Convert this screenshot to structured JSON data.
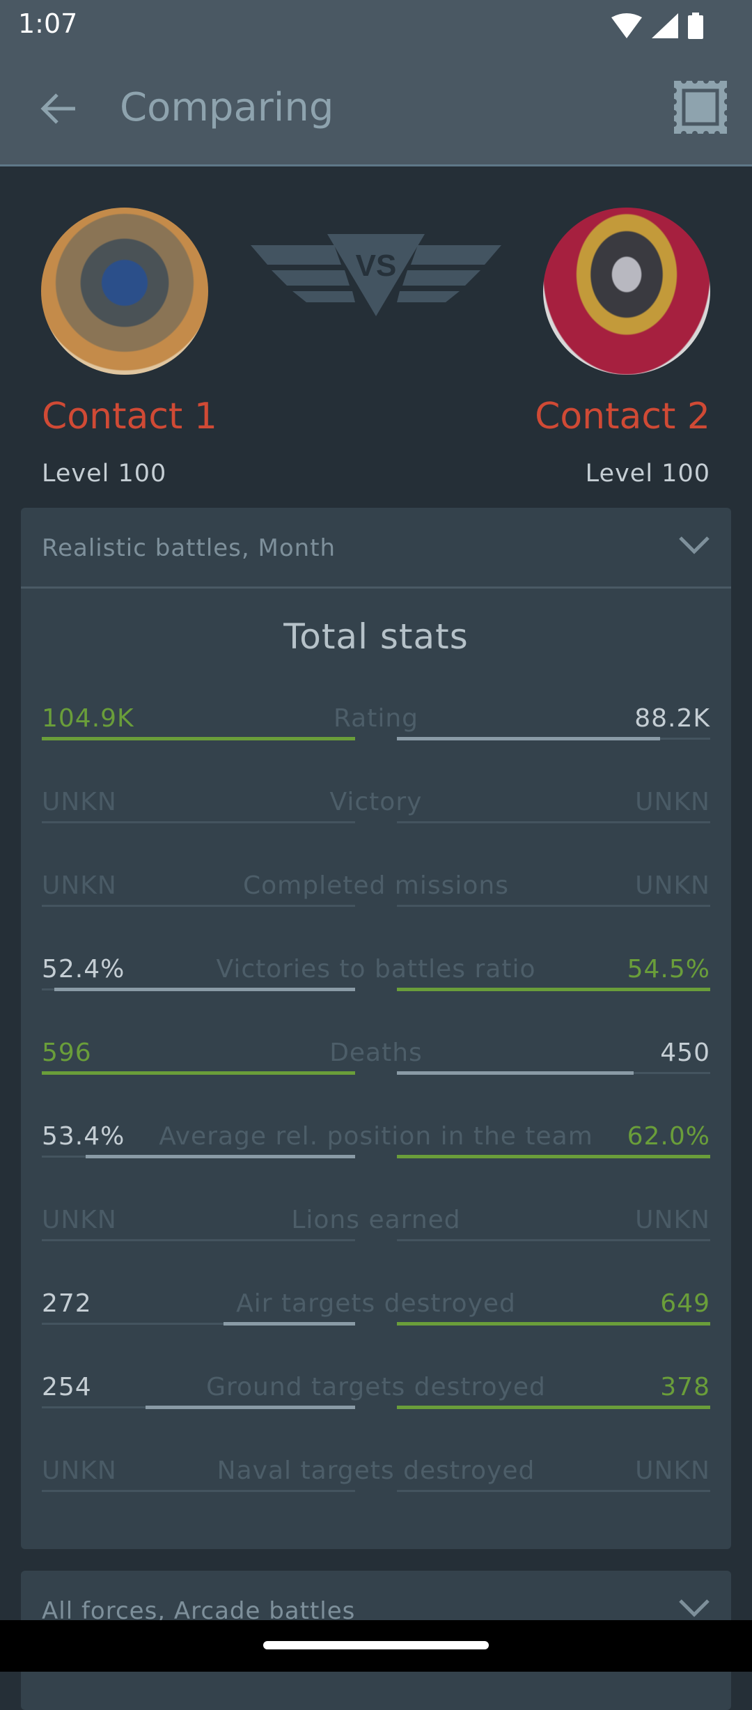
{
  "status": {
    "time": "1:07"
  },
  "appbar": {
    "title": "Comparing"
  },
  "players": [
    {
      "name": "Contact 1",
      "level": "Level 100"
    },
    {
      "name": "Contact 2",
      "level": "Level 100"
    }
  ],
  "vs_label": "VS",
  "card1": {
    "filter": "Realistic battles, Month",
    "title": "Total stats"
  },
  "card2": {
    "filter": "All forces, Arcade battles"
  },
  "colors": {
    "better": "#6a9e3a",
    "worse": "#8a9ba6",
    "unknown": "#4a5b66",
    "name": "#d04a35"
  },
  "stats": [
    {
      "label": "Rating",
      "left": "104.9K",
      "right": "88.2K",
      "left_fill": 1,
      "right_fill": 0.84,
      "winner": "left"
    },
    {
      "label": "Victory",
      "left": "UNKN",
      "right": "UNKN",
      "left_fill": 0,
      "right_fill": 0,
      "winner": "none"
    },
    {
      "label": "Completed missions",
      "left": "UNKN",
      "right": "UNKN",
      "left_fill": 0,
      "right_fill": 0,
      "winner": "none"
    },
    {
      "label": "Victories to battles ratio",
      "left": "52.4%",
      "right": "54.5%",
      "left_fill": 0.96,
      "right_fill": 1,
      "winner": "right"
    },
    {
      "label": "Deaths",
      "left": "596",
      "right": "450",
      "left_fill": 1,
      "right_fill": 0.755,
      "winner": "left"
    },
    {
      "label": "Average rel. position in the team",
      "left": "53.4%",
      "right": "62.0%",
      "left_fill": 0.86,
      "right_fill": 1,
      "winner": "right"
    },
    {
      "label": "Lions earned",
      "left": "UNKN",
      "right": "UNKN",
      "left_fill": 0,
      "right_fill": 0,
      "winner": "none"
    },
    {
      "label": "Air targets destroyed",
      "left": "272",
      "right": "649",
      "left_fill": 0.42,
      "right_fill": 1,
      "winner": "right"
    },
    {
      "label": "Ground targets destroyed",
      "left": "254",
      "right": "378",
      "left_fill": 0.67,
      "right_fill": 1,
      "winner": "right"
    },
    {
      "label": "Naval targets destroyed",
      "left": "UNKN",
      "right": "UNKN",
      "left_fill": 0,
      "right_fill": 0,
      "winner": "none"
    }
  ]
}
